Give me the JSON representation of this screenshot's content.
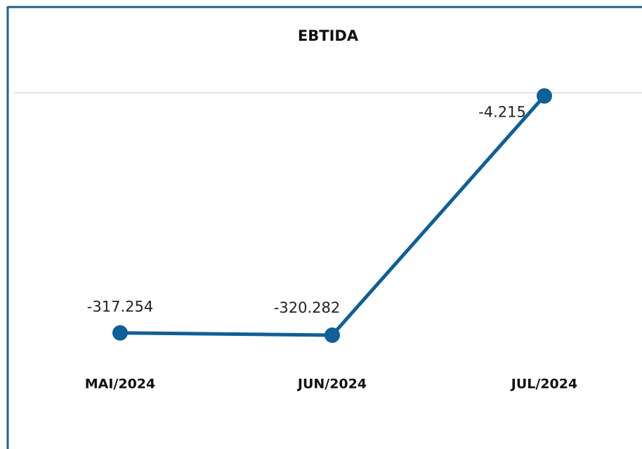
{
  "chart_data": {
    "type": "line",
    "title": "EBTIDA",
    "categories": [
      "MAI/2024",
      "JUN/2024",
      "JUL/2024"
    ],
    "series": [
      {
        "name": "EBTIDA",
        "color": "#0f5f98",
        "values": [
          -317254,
          -320282,
          -4215
        ],
        "value_labels": [
          "-317.254",
          "-320.282",
          "-4.215"
        ]
      }
    ],
    "ylim": [
      -350000,
      0
    ]
  }
}
